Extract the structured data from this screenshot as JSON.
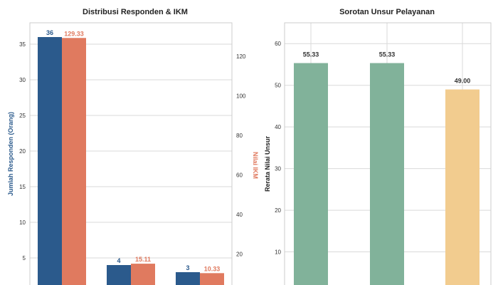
{
  "colors": {
    "responden": "#2b5a8c",
    "ikm": "#e07a5f",
    "unsur_green": "#81b29a",
    "unsur_yellow": "#f2cc8f",
    "grid": "#d9d9d9",
    "spine": "#cccccc"
  },
  "chart_data": [
    {
      "type": "bar",
      "title": "Distribusi Responden & IKM",
      "ylabel": "Jumlah Responden (Orang)",
      "y2label": "Nilai IKM",
      "ylim": [
        0,
        38
      ],
      "y2lim": [
        0,
        137
      ],
      "yticks": [
        5,
        10,
        15,
        20,
        25,
        30,
        35
      ],
      "y2ticks": [
        20,
        40,
        60,
        80,
        100,
        120
      ],
      "grid": true,
      "series": [
        {
          "axis": "left",
          "values": [
            36,
            4,
            3
          ],
          "labels": [
            "36",
            "4",
            "3"
          ]
        },
        {
          "axis": "right",
          "values": [
            129.33,
            15.11,
            10.33
          ],
          "labels": [
            "129.33",
            "15.11",
            "10.33"
          ]
        }
      ]
    },
    {
      "type": "bar",
      "title": "Sorotan Unsur Pelayanan",
      "ylabel": "Rerata Nilai Unsur",
      "ylim": [
        0,
        65
      ],
      "yticks": [
        10,
        20,
        30,
        40,
        50,
        60
      ],
      "grid": true,
      "values": [
        55.33,
        55.33,
        49.0
      ],
      "labels": [
        "55.33",
        "55.33",
        "49.00"
      ],
      "bar_colors": [
        "#81b29a",
        "#81b29a",
        "#f2cc8f"
      ]
    }
  ]
}
